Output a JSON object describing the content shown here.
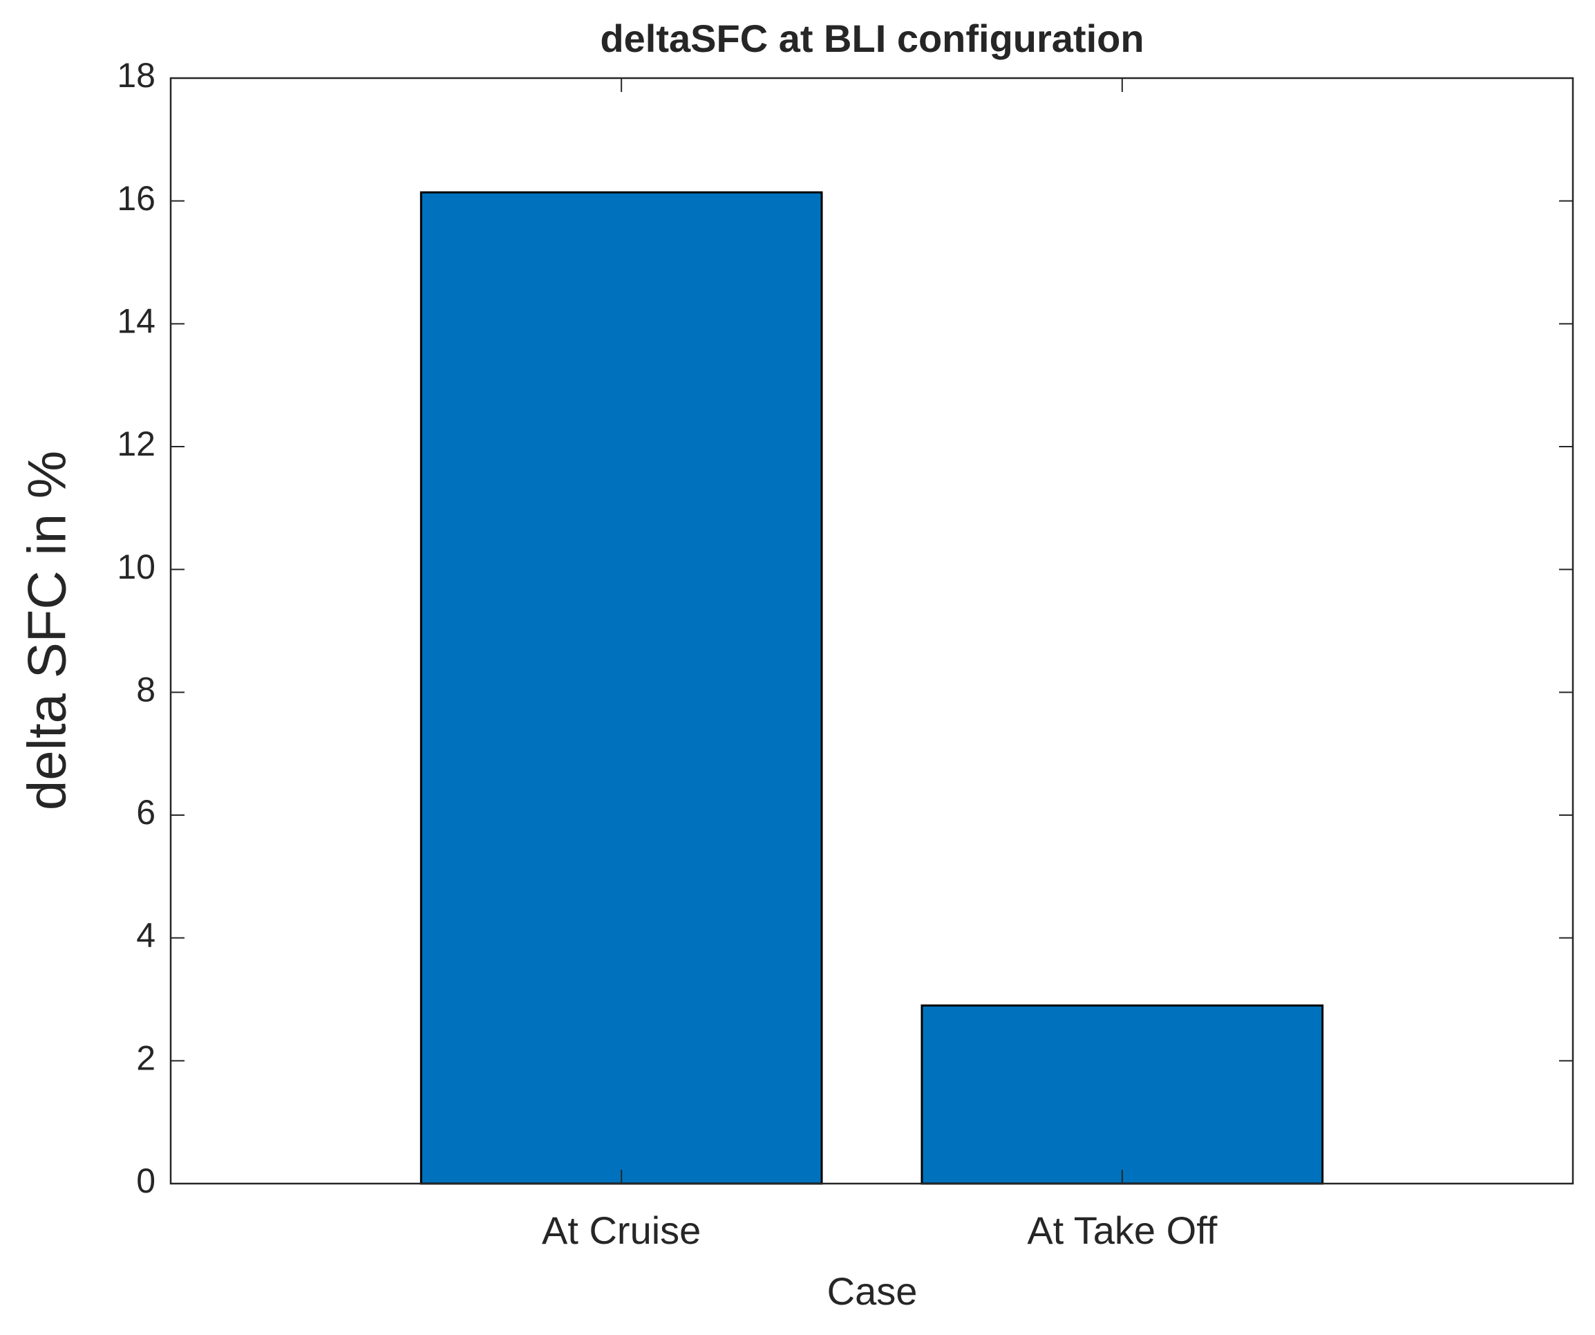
{
  "chart_data": {
    "type": "bar",
    "title": "deltaSFC at BLI configuration",
    "x_label": "Case",
    "y_label": "delta SFC in %",
    "categories": [
      "At Cruise",
      "At Take Off"
    ],
    "values": [
      16.14,
      2.9
    ],
    "color": "#0072bd",
    "ylim": [
      0,
      18
    ],
    "yticks": [
      0,
      2,
      4,
      6,
      8,
      10,
      12,
      14,
      16,
      18
    ],
    "grid": false
  }
}
